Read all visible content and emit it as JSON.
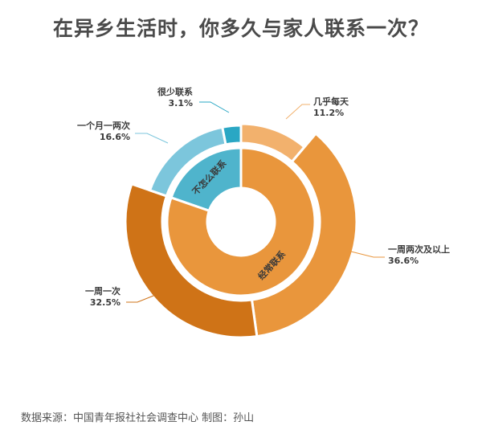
{
  "title": "在异乡生活时，你多久与家人联系一次？",
  "source": "数据来源：中国青年报社社会调查中心 制图：孙山",
  "chart_data": {
    "type": "pie",
    "inner": [
      {
        "label": "不怎么联系",
        "value": 19.7,
        "color": "#4fb4cc"
      },
      {
        "label": "经常联系",
        "value": 80.3,
        "color": "#e9963c"
      }
    ],
    "outer": [
      {
        "label": "几乎每天",
        "pct": "11.2%",
        "value": 11.2,
        "color": "#f2b16d"
      },
      {
        "label": "一周两次及以上",
        "pct": "36.6%",
        "value": 36.6,
        "color": "#e9963c"
      },
      {
        "label": "一周一次",
        "pct": "32.5%",
        "value": 32.5,
        "color": "#cf7317"
      },
      {
        "label": "一个月一两次",
        "pct": "16.6%",
        "value": 16.6,
        "color": "#7cc6dc"
      },
      {
        "label": "很少联系",
        "pct": "3.1%",
        "value": 3.1,
        "color": "#2aa7c4"
      }
    ]
  }
}
